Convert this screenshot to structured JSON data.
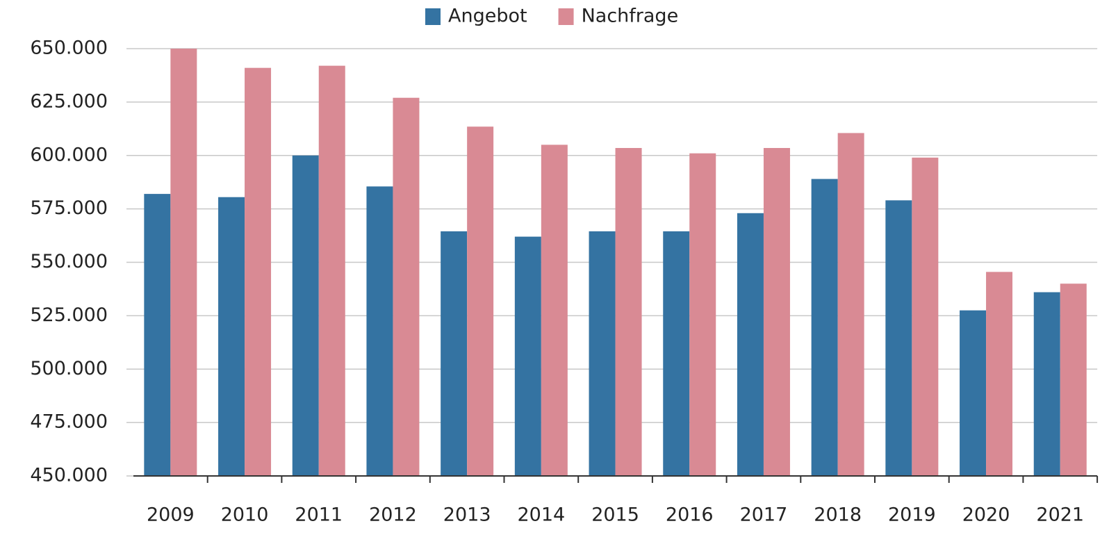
{
  "chart_data": {
    "type": "bar",
    "categories": [
      "2009",
      "2010",
      "2011",
      "2012",
      "2013",
      "2014",
      "2015",
      "2016",
      "2017",
      "2018",
      "2019",
      "2020",
      "2021"
    ],
    "series": [
      {
        "name": "Angebot",
        "color": "#3473a2",
        "values": [
          582000,
          580500,
          600000,
          585500,
          564500,
          562000,
          564500,
          564500,
          573000,
          589000,
          579000,
          527500,
          536000
        ]
      },
      {
        "name": "Nachfrage",
        "color": "#d98a94",
        "values": [
          650000,
          641000,
          642000,
          627000,
          613500,
          605000,
          603500,
          601000,
          603500,
          610500,
          599000,
          545500,
          540000
        ]
      }
    ],
    "ylim": [
      450000,
      650000
    ],
    "yticks": [
      {
        "value": 450000,
        "label": "450.000"
      },
      {
        "value": 475000,
        "label": "475.000"
      },
      {
        "value": 500000,
        "label": "500.000"
      },
      {
        "value": 525000,
        "label": "525.000"
      },
      {
        "value": 550000,
        "label": "550.000"
      },
      {
        "value": 575000,
        "label": "575.000"
      },
      {
        "value": 600000,
        "label": "600.000"
      },
      {
        "value": 625000,
        "label": "625.000"
      },
      {
        "value": 650000,
        "label": "650.000"
      }
    ],
    "grid": true,
    "legend": "top"
  }
}
